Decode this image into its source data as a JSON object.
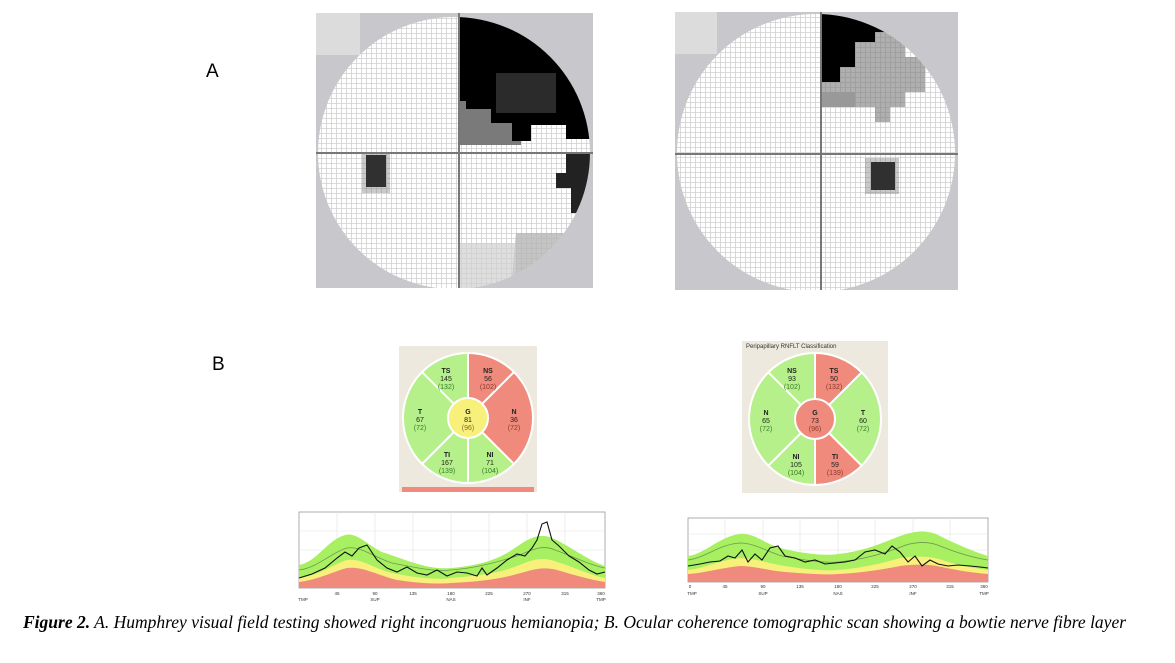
{
  "panel_a": {
    "label": "A"
  },
  "panel_b": {
    "label": "B"
  },
  "rnfl_right": {
    "header": "Peripapillary RNFLT Classification",
    "sectors": {
      "TS": {
        "name": "TS",
        "value": "50",
        "ref": "(132)"
      },
      "NS": {
        "name": "NS",
        "value": "93",
        "ref": "(102)"
      },
      "N": {
        "name": "N",
        "value": "65",
        "ref": "(72)"
      },
      "NI": {
        "name": "NI",
        "value": "105",
        "ref": "(104)"
      },
      "TI": {
        "name": "TI",
        "value": "59",
        "ref": "(139)"
      },
      "T": {
        "name": "T",
        "value": "60",
        "ref": "(72)"
      },
      "G": {
        "name": "G",
        "value": "73",
        "ref": "(96)"
      }
    }
  },
  "rnfl_left": {
    "sectors": {
      "TS": {
        "name": "TS",
        "value": "145",
        "ref": "(132)"
      },
      "NS": {
        "name": "NS",
        "value": "56",
        "ref": "(102)"
      },
      "N": {
        "name": "N",
        "value": "36",
        "ref": "(72)"
      },
      "NI": {
        "name": "NI",
        "value": "71",
        "ref": "(104)"
      },
      "TI": {
        "name": "TI",
        "value": "167",
        "ref": "(139)"
      },
      "T": {
        "name": "T",
        "value": "67",
        "ref": "(72)"
      },
      "G": {
        "name": "G",
        "value": "81",
        "ref": "(96)"
      }
    }
  },
  "tsnit_left": {
    "x_ticks": [
      "45",
      "90",
      "135",
      "180",
      "225",
      "270",
      "315",
      "360"
    ],
    "x_names": [
      "TMP",
      "SUP",
      "NAS",
      "INF",
      "TMP"
    ]
  },
  "tsnit_right": {
    "x_ticks": [
      "0",
      "45",
      "90",
      "135",
      "180",
      "225",
      "270",
      "315",
      "360"
    ],
    "x_names": [
      "TMP",
      "SUP",
      "NAS",
      "INF",
      "TMP"
    ]
  },
  "caption": {
    "figure_label": "Figure 2.",
    "text": " A. Humphrey visual field testing showed right incongruous hemianopia; B. Ocular coherence tomographic scan showing a bowtie nerve fibre layer"
  },
  "colors": {
    "normal_green": "#b5f08a",
    "border_red": "#f08a7c",
    "borderline_yellow": "#f7f07a",
    "scotoma_black": "#000000",
    "vf_background": "#c8c7cb"
  }
}
